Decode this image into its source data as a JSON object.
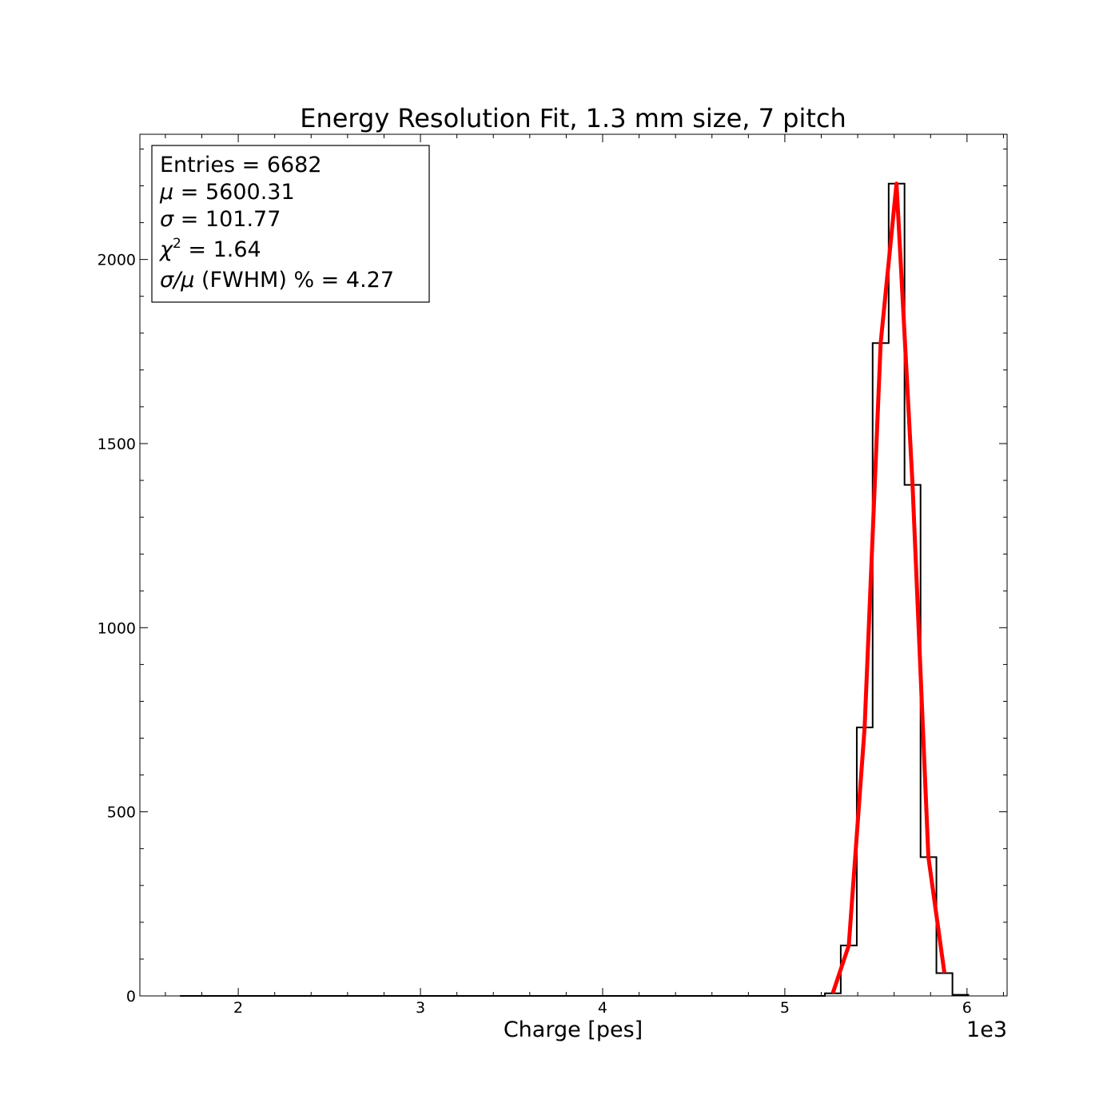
{
  "chart_data": {
    "type": "histogram",
    "title": "Energy Resolution Fit, 1.3 mm size, 7 pitch",
    "xlabel": "Charge [pes]",
    "ylabel": "",
    "x_offset_label": "1e3",
    "xlim": [
      1460,
      6220
    ],
    "ylim": [
      0,
      2340
    ],
    "xticks": [
      2000,
      3000,
      4000,
      5000,
      6000
    ],
    "xtick_labels": [
      "2",
      "3",
      "4",
      "5",
      "6"
    ],
    "yticks": [
      0,
      500,
      1000,
      1500,
      2000
    ],
    "ytick_labels": [
      "0",
      "500",
      "1000",
      "1500",
      "2000"
    ],
    "grid": false,
    "histogram": {
      "color": "#000000",
      "baseline_start": 1680,
      "bin_edges": [
        5220,
        5307,
        5395,
        5482,
        5570,
        5657,
        5745,
        5832,
        5920,
        6007
      ],
      "counts": [
        7,
        137,
        729,
        1773,
        2206,
        1388,
        377,
        62,
        3
      ]
    },
    "fit": {
      "color": "#ff0000",
      "x": [
        5263,
        5351,
        5438,
        5526,
        5613,
        5701,
        5788,
        5876
      ],
      "y": [
        7,
        137,
        729,
        1773,
        2206,
        1388,
        377,
        62
      ]
    },
    "stats_box": {
      "placement": "top-left",
      "entries_line": "Entries = 6682",
      "mu_symbol": "μ",
      "mu_rest": " = 5600.31",
      "sigma_symbol": "σ",
      "sigma_rest": " =  101.77",
      "chi_symbol": "χ",
      "chi_sup": "2",
      "chi_rest": " =    1.64",
      "res_symbol": "σ/μ",
      "res_rest": " (FWHM) % =    4.27"
    }
  }
}
